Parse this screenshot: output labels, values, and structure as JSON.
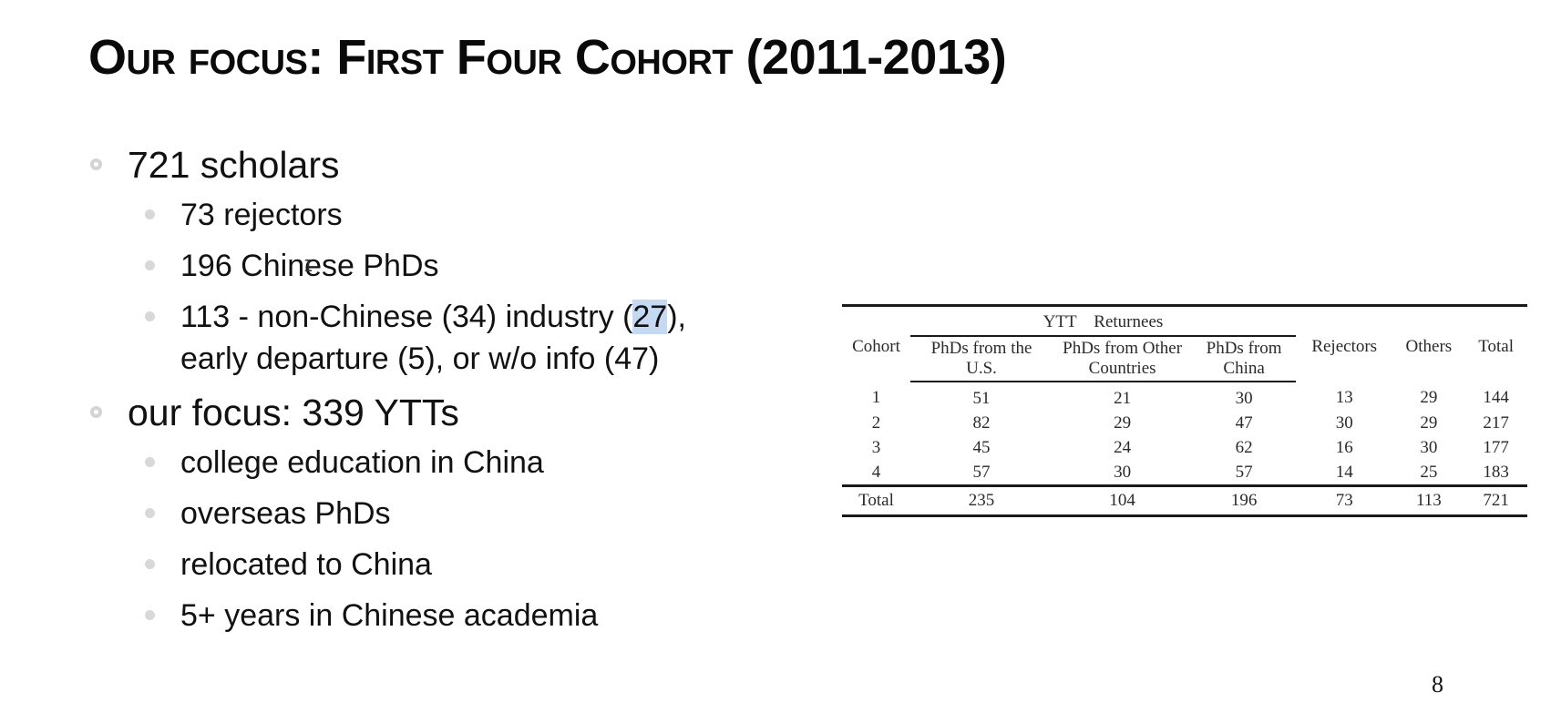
{
  "slide": {
    "title": "Our focus: First Four Cohort (2011-2013)",
    "page_number": "8"
  },
  "bullets": {
    "scholars": "721 scholars",
    "rejectors": "73 rejectors",
    "chinese_phds": "196 Chinese PhDs",
    "other_line1_pre": "113 - non-Chinese (34) industry (",
    "other_line1_highlight": "27",
    "other_line1_post": "),",
    "other_line2": "early departure (5), or w/o info (47)",
    "focus": "our focus: 339 YTTs",
    "focus_items": [
      "college education in China",
      "overseas PhDs",
      "relocated to China",
      "5+ years in Chinese academia"
    ]
  },
  "table": {
    "group_header": "YTT    Returnees",
    "columns": {
      "cohort": "Cohort",
      "phd_us": "PhDs from the U.S.",
      "phd_other": "PhDs from Other Countries",
      "phd_china": "PhDs from China",
      "rejectors": "Rejectors",
      "others": "Others",
      "total": "Total"
    },
    "rows": [
      {
        "cohort": "1",
        "phd_us": "51",
        "phd_other": "21",
        "phd_china": "30",
        "rejectors": "13",
        "others": "29",
        "total": "144"
      },
      {
        "cohort": "2",
        "phd_us": "82",
        "phd_other": "29",
        "phd_china": "47",
        "rejectors": "30",
        "others": "29",
        "total": "217"
      },
      {
        "cohort": "3",
        "phd_us": "45",
        "phd_other": "24",
        "phd_china": "62",
        "rejectors": "16",
        "others": "30",
        "total": "177"
      },
      {
        "cohort": "4",
        "phd_us": "57",
        "phd_other": "30",
        "phd_china": "57",
        "rejectors": "14",
        "others": "25",
        "total": "183"
      }
    ],
    "total_row": {
      "cohort": "Total",
      "phd_us": "235",
      "phd_other": "104",
      "phd_china": "196",
      "rejectors": "73",
      "others": "113",
      "total": "721"
    }
  },
  "colors": {
    "highlight": "#c5d9f2",
    "bullet_marker": "#d4d4d4"
  }
}
